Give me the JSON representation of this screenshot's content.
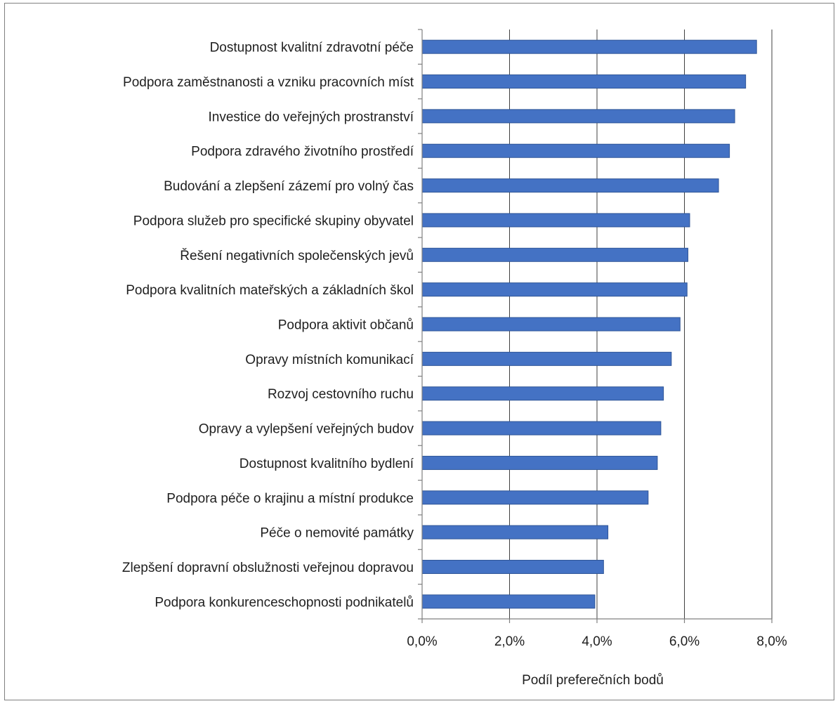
{
  "chart_data": {
    "type": "bar",
    "orientation": "horizontal",
    "categories": [
      "Dostupnost kvalitní zdravotní péče",
      "Podpora zaměstnanosti a vzniku pracovních míst",
      "Investice do veřejných prostranství",
      "Podpora zdravého životního prostředí",
      "Budování a zlepšení zázemí pro volný čas",
      "Podpora služeb pro specifické skupiny obyvatel",
      "Řešení negativních společenských jevů",
      "Podpora kvalitních mateřských a základních škol",
      "Podpora aktivit občanů",
      "Opravy místních komunikací",
      "Rozvoj cestovního ruchu",
      "Opravy a vylepšení veřejných budov",
      "Dostupnost kvalitního bydlení",
      "Podpora péče o krajinu a místní produkce",
      "Péče o nemovité památky",
      "Zlepšení dopravní obslužnosti veřejnou dopravou",
      "Podpora konkurenceschopnosti podnikatelů"
    ],
    "values": [
      7.65,
      7.4,
      7.15,
      7.03,
      6.78,
      6.12,
      6.08,
      6.06,
      5.9,
      5.7,
      5.52,
      5.46,
      5.38,
      5.17,
      4.25,
      4.15,
      3.95
    ],
    "xlabel": "Podíl preferečních bodů",
    "xlim": [
      0,
      8
    ],
    "xticks": [
      "0,0%",
      "2,0%",
      "4,0%",
      "6,0%",
      "8,0%"
    ],
    "grid": "vertical",
    "bar_color": "#4472c4",
    "bar_border_color": "#2f5597",
    "gridline_color": "#404040"
  }
}
